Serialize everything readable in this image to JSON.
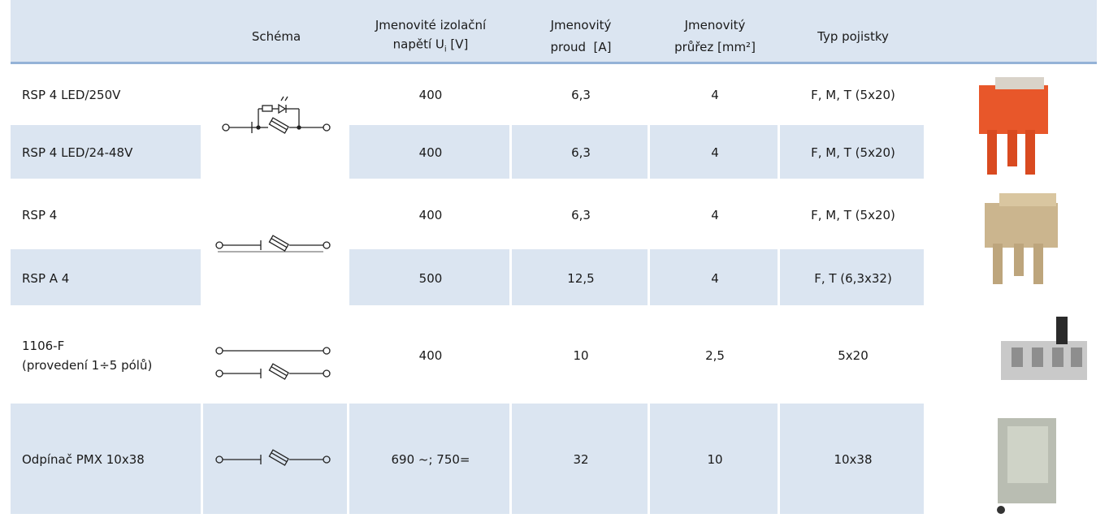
{
  "header": {
    "schema": "Schéma",
    "voltage": {
      "line1": "Jmenovité izolační",
      "line2": "napětí U",
      "sub": "i",
      "unit": " [V]"
    },
    "current": {
      "line1": "Jmenovitý",
      "line2": "proud  [A]"
    },
    "section": {
      "line1": "Jmenovitý",
      "line2": "průřez [mm²]"
    },
    "fuse": "Typ pojistky"
  },
  "rows": [
    {
      "name": "RSP 4 LED/250V",
      "voltage": "400",
      "current": "6,3",
      "section": "4",
      "fuse": "F, M, T (5x20)"
    },
    {
      "name": "RSP 4 LED/24-48V",
      "voltage": "400",
      "current": "6,3",
      "section": "4",
      "fuse": "F, M, T (5x20)"
    },
    {
      "name": "RSP 4",
      "voltage": "400",
      "current": "6,3",
      "section": "4",
      "fuse": "F, M, T (5x20)"
    },
    {
      "name": "RSP A 4",
      "voltage": "500",
      "current": "12,5",
      "section": "4",
      "fuse": "F, T (6,3x32)"
    },
    {
      "name": "1106-F",
      "note": "(provedení 1÷5 pólů)",
      "voltage": "400",
      "current": "10",
      "section": "2,5",
      "fuse": "5x20"
    },
    {
      "name": "Odpínač PMX 10x38",
      "voltage": "690 ~; 750=",
      "current": "32",
      "section": "10",
      "fuse": "10x38"
    }
  ]
}
